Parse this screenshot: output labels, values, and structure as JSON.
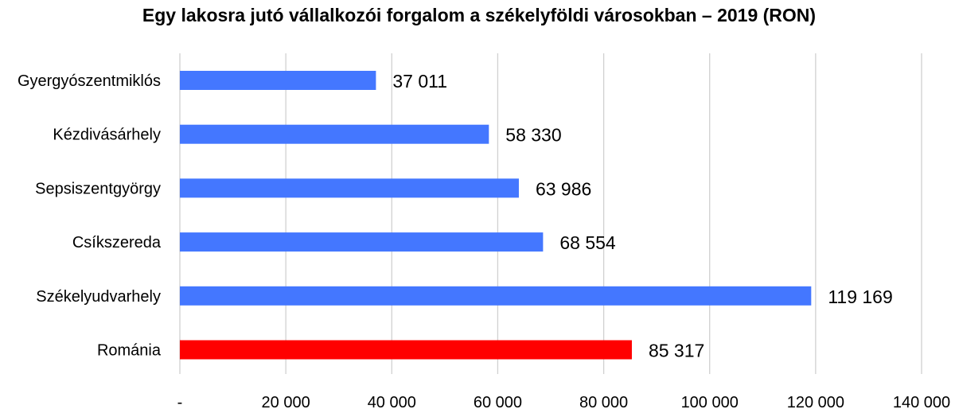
{
  "chart_data": {
    "type": "bar",
    "orientation": "horizontal",
    "title": "Egy lakosra jutó vállalkozói forgalom a székelyföldi városokban – 2019 (RON)",
    "categories": [
      "Gyergyószentmiklós",
      "Kézdivásárhely",
      "Sepsiszentgyörgy",
      "Csíkszereda",
      "Székelyudvarhely",
      "Románia"
    ],
    "values": [
      37011,
      58330,
      63986,
      68554,
      119169,
      85317
    ],
    "value_labels": [
      "37 011",
      "58 330",
      "63 986",
      "68 554",
      "119 169",
      "85 317"
    ],
    "bar_colors": [
      "#4477ff",
      "#4477ff",
      "#4477ff",
      "#4477ff",
      "#4477ff",
      "#ff0000"
    ],
    "xlim": [
      0,
      140000
    ],
    "x_ticks": [
      0,
      20000,
      40000,
      60000,
      80000,
      100000,
      120000,
      140000
    ],
    "x_tick_labels": [
      "-",
      "20 000",
      "40 000",
      "60 000",
      "80 000",
      "100 000",
      "120 000",
      "140 000"
    ],
    "grid": true,
    "legend": "none"
  }
}
